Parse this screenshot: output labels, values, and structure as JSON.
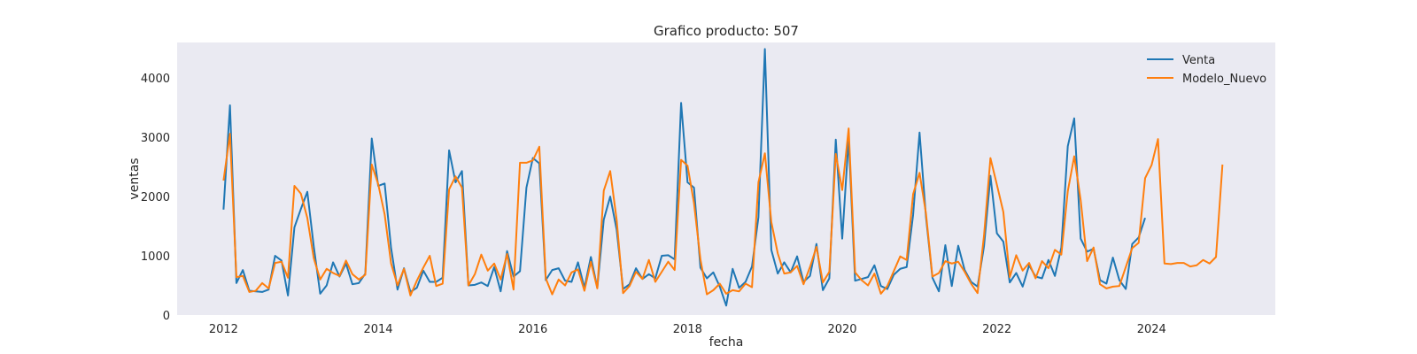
{
  "chart_data": {
    "type": "line",
    "title": "Grafico producto: 507",
    "xlabel": "fecha",
    "ylabel": "ventas",
    "xlim": [
      2011.4,
      2025.6
    ],
    "ylim": [
      0,
      4600
    ],
    "xticks": [
      2012,
      2014,
      2016,
      2018,
      2020,
      2022,
      2024
    ],
    "xtick_labels": [
      "2012",
      "2014",
      "2016",
      "2018",
      "2020",
      "2022",
      "2024"
    ],
    "yticks": [
      0,
      1000,
      2000,
      3000,
      4000
    ],
    "ytick_labels": [
      "0",
      "1000",
      "2000",
      "3000",
      "4000"
    ],
    "grid": false,
    "legend_position": "top-right",
    "background": "#eaeaf2",
    "series": [
      {
        "name": "Venta",
        "color": "#1f77b4",
        "x_start": 2012.0,
        "x_step": 0.0833333,
        "values": [
          1780,
          3540,
          540,
          760,
          410,
          400,
          390,
          430,
          1000,
          920,
          330,
          1480,
          1790,
          2080,
          1160,
          360,
          500,
          890,
          650,
          870,
          520,
          540,
          700,
          2980,
          2180,
          2220,
          1130,
          430,
          790,
          390,
          460,
          750,
          560,
          560,
          630,
          2780,
          2240,
          2430,
          500,
          510,
          550,
          490,
          810,
          400,
          1080,
          650,
          740,
          2150,
          2650,
          2560,
          590,
          760,
          790,
          580,
          560,
          890,
          460,
          980,
          460,
          1610,
          2000,
          1440,
          440,
          520,
          790,
          610,
          690,
          620,
          1000,
          1010,
          940,
          3580,
          2240,
          2150,
          800,
          620,
          720,
          480,
          160,
          780,
          460,
          560,
          820,
          1650,
          4490,
          1100,
          700,
          890,
          720,
          990,
          560,
          660,
          1200,
          420,
          620,
          2960,
          1290,
          2980,
          580,
          610,
          640,
          840,
          490,
          440,
          680,
          780,
          810,
          1690,
          3080,
          1650,
          630,
          400,
          1180,
          490,
          1170,
          760,
          560,
          480,
          1160,
          2350,
          1380,
          1240,
          550,
          710,
          480,
          840,
          650,
          620,
          930,
          660,
          1140,
          2850,
          3320,
          1290,
          1070,
          1120,
          590,
          530,
          970,
          590,
          440,
          1200,
          1310,
          1640
        ]
      },
      {
        "name": "Modelo_Nuevo",
        "color": "#ff7f0e",
        "x_start": 2012.0,
        "x_step": 0.0833333,
        "values": [
          2270,
          3060,
          640,
          660,
          390,
          410,
          540,
          450,
          880,
          900,
          630,
          2180,
          2050,
          1640,
          960,
          600,
          780,
          710,
          660,
          920,
          690,
          600,
          680,
          2540,
          2210,
          1700,
          870,
          500,
          780,
          330,
          580,
          800,
          1000,
          490,
          530,
          2120,
          2340,
          2150,
          500,
          690,
          1020,
          750,
          870,
          600,
          1030,
          430,
          2570,
          2570,
          2610,
          2840,
          620,
          350,
          600,
          500,
          720,
          770,
          410,
          900,
          450,
          2100,
          2430,
          1610,
          370,
          490,
          730,
          610,
          930,
          560,
          730,
          900,
          760,
          2620,
          2520,
          1890,
          940,
          350,
          420,
          530,
          360,
          420,
          400,
          530,
          470,
          2240,
          2730,
          1570,
          1040,
          700,
          720,
          830,
          520,
          810,
          1150,
          550,
          730,
          2720,
          2110,
          3150,
          720,
          590,
          500,
          700,
          360,
          490,
          740,
          990,
          930,
          2040,
          2400,
          1710,
          650,
          710,
          910,
          870,
          900,
          730,
          530,
          370,
          1340,
          2650,
          2200,
          1740,
          640,
          1010,
          750,
          880,
          620,
          910,
          790,
          1100,
          1020,
          2090,
          2680,
          1940,
          910,
          1140,
          520,
          450,
          480,
          490,
          810,
          1130,
          1220,
          2310,
          2530,
          2970,
          870,
          860,
          880,
          880,
          820,
          840,
          930,
          870,
          980,
          2540
        ]
      }
    ]
  }
}
